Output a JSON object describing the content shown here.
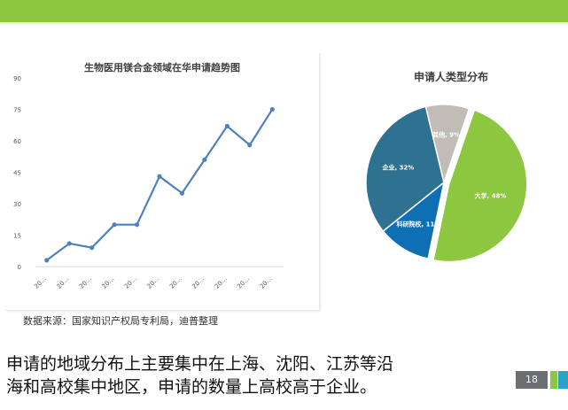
{
  "chart_data": [
    {
      "type": "line",
      "title": "生物医用镁合金领域在华申请趋势图",
      "x": [
        "20…",
        "20…",
        "20…",
        "20…",
        "20…",
        "20…",
        "20…",
        "20…",
        "20…",
        "20…",
        "20…"
      ],
      "values": [
        3,
        11,
        9,
        20,
        20,
        43,
        35,
        51,
        67,
        58,
        75
      ],
      "ylim": [
        0,
        90
      ],
      "yticks": [
        0,
        15,
        30,
        45,
        60,
        75,
        90
      ],
      "grid": false,
      "color": "#4f81bd"
    },
    {
      "type": "pie",
      "title": "申请人类型分布",
      "slices": [
        {
          "label": "大学, 48%",
          "value": 48,
          "color": "#8dc63f"
        },
        {
          "label": "科研院校, 11%",
          "value": 11,
          "color": "#0f6fb5"
        },
        {
          "label": "企业, 32%",
          "value": 32,
          "color": "#2e7191"
        },
        {
          "label": "其他, 9%",
          "value": 9,
          "color": "#c1bdb6"
        }
      ]
    }
  ],
  "source_note": "数据来源：国家知识产权局专利局，迪普整理",
  "caption_lines": [
    "申请的地域分布上主要集中在上海、沈阳、江苏等沿",
    "海和高校集中地区，申请的数量上高校高于企业。"
  ],
  "page_number": "18",
  "colors": {
    "top_bar": "#8dc63f",
    "page_badge": "#6d6e71",
    "accent_blue": "#29a3c8"
  }
}
